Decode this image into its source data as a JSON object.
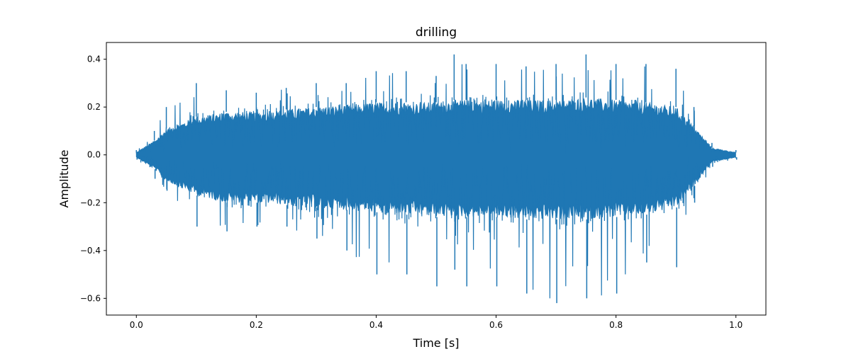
{
  "chart_data": {
    "type": "line",
    "title": "drilling",
    "xlabel": "Time [s]",
    "ylabel": "Amplitude",
    "xlim": [
      -0.05,
      1.05
    ],
    "ylim": [
      -0.67,
      0.47
    ],
    "xticks": [
      0.0,
      0.2,
      0.4,
      0.6,
      0.8,
      1.0
    ],
    "xtick_labels": [
      "0.0",
      "0.2",
      "0.4",
      "0.6",
      "0.8",
      "1.0"
    ],
    "yticks": [
      -0.6,
      -0.4,
      -0.2,
      0.0,
      0.2,
      0.4
    ],
    "ytick_labels": [
      "−0.6",
      "−0.4",
      "−0.2",
      "0.0",
      "0.2",
      "0.4"
    ],
    "grid": false,
    "legend": "none",
    "series": [
      {
        "color": "#1f77b4",
        "x": [
          0.0,
          0.03,
          0.05,
          0.1,
          0.15,
          0.2,
          0.25,
          0.3,
          0.35,
          0.4,
          0.45,
          0.5,
          0.53,
          0.55,
          0.6,
          0.65,
          0.7,
          0.75,
          0.8,
          0.85,
          0.9,
          0.93,
          0.96,
          1.0
        ],
        "max": [
          0.02,
          0.1,
          0.2,
          0.3,
          0.27,
          0.26,
          0.28,
          0.3,
          0.3,
          0.35,
          0.35,
          0.33,
          0.42,
          0.38,
          0.38,
          0.37,
          0.38,
          0.42,
          0.38,
          0.38,
          0.36,
          0.2,
          0.05,
          0.02
        ],
        "min": [
          -0.02,
          -0.1,
          -0.15,
          -0.3,
          -0.32,
          -0.3,
          -0.3,
          -0.35,
          -0.4,
          -0.5,
          -0.5,
          -0.55,
          -0.48,
          -0.55,
          -0.55,
          -0.58,
          -0.62,
          -0.6,
          -0.58,
          -0.45,
          -0.47,
          -0.2,
          -0.05,
          -0.02
        ],
        "env_high": [
          0.01,
          0.06,
          0.11,
          0.16,
          0.18,
          0.18,
          0.19,
          0.2,
          0.21,
          0.22,
          0.22,
          0.22,
          0.23,
          0.23,
          0.23,
          0.23,
          0.23,
          0.24,
          0.23,
          0.22,
          0.2,
          0.12,
          0.03,
          0.01
        ],
        "env_low": [
          -0.01,
          -0.06,
          -0.11,
          -0.17,
          -0.2,
          -0.2,
          -0.21,
          -0.22,
          -0.23,
          -0.24,
          -0.25,
          -0.26,
          -0.26,
          -0.26,
          -0.26,
          -0.27,
          -0.27,
          -0.27,
          -0.26,
          -0.25,
          -0.22,
          -0.13,
          -0.03,
          -0.01
        ]
      }
    ]
  }
}
